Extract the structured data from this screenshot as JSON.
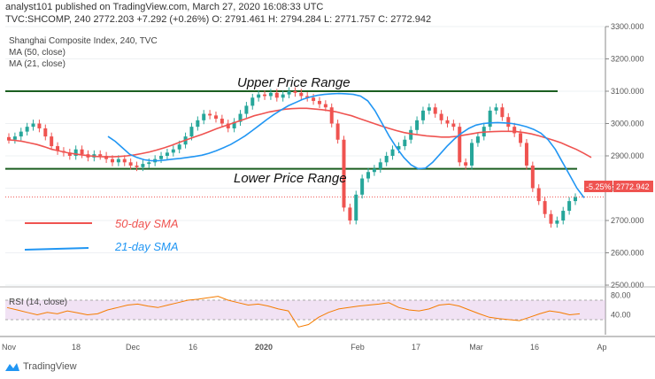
{
  "header": {
    "line1": "analyst101 published on TradingView.com, March 27, 2020 16:08:33 UTC",
    "line2": "TVC:SHCOMP, 240  2772.203  +7.292 (+0.26%)  O: 2791.461  H: 2794.284  L: 2771.757  C: 2772.942"
  },
  "panel": {
    "title": "Shanghai Composite Index, 240, TVC",
    "ma50_label": "MA (50, close)",
    "ma21_label": "MA (21, close)"
  },
  "annotations": {
    "upper": "Upper Price Range",
    "lower": "Lower Price Range",
    "legend_50": "50-day SMA",
    "legend_21": "21-day SMA"
  },
  "price_tags": {
    "change": "-5.25%",
    "last": "2772.942"
  },
  "rsi": {
    "label": "RSI (14, close)",
    "ticks": [
      "80.00",
      "40.00"
    ]
  },
  "footer": {
    "brand": "TradingView"
  },
  "colors": {
    "up": "#26a69a",
    "down": "#ef5350",
    "ma50": "#ef5350",
    "ma21": "#2196f3",
    "range": "#1b5e20",
    "rsi": "#f57c00",
    "rsi_band": "#e1bee7"
  },
  "chart_data": {
    "type": "candlestick",
    "y_axis": {
      "range": [
        2500,
        3300
      ],
      "ticks": [
        "3300.000",
        "3200.000",
        "3100.000",
        "3000.000",
        "2900.000",
        "2800.000",
        "2700.000",
        "2600.000",
        "2500.000"
      ]
    },
    "x_ticks": [
      "Nov",
      "18",
      "Dec",
      "16",
      "2020",
      "Feb",
      "17",
      "Mar",
      "16",
      "Ap"
    ],
    "upper_range": 3100,
    "lower_range": 2860,
    "current_price": 2772.942,
    "closes": [
      2950,
      2960,
      2975,
      2990,
      3000,
      2985,
      2960,
      2930,
      2915,
      2910,
      2900,
      2920,
      2905,
      2895,
      2905,
      2900,
      2890,
      2880,
      2890,
      2880,
      2870,
      2865,
      2875,
      2880,
      2890,
      2900,
      2910,
      2920,
      2935,
      2960,
      2990,
      3010,
      3030,
      3025,
      3015,
      3000,
      2985,
      3005,
      3030,
      3055,
      3080,
      3090,
      3085,
      3095,
      3080,
      3090,
      3100,
      3095,
      3085,
      3080,
      3070,
      3060,
      3050,
      3000,
      2950,
      2740,
      2700,
      2780,
      2830,
      2850,
      2860,
      2880,
      2900,
      2920,
      2930,
      2950,
      2980,
      3010,
      3040,
      3050,
      3030,
      3010,
      3000,
      2990,
      2880,
      2870,
      2940,
      2960,
      2990,
      3040,
      3050,
      3020,
      2990,
      2970,
      2940,
      2870,
      2800,
      2760,
      2720,
      2690,
      2700,
      2730,
      2760,
      2772
    ],
    "ma50": [
      2950,
      2948,
      2945,
      2940,
      2935,
      2928,
      2920,
      2915,
      2910,
      2906,
      2903,
      2900,
      2898,
      2897,
      2897,
      2898,
      2900,
      2903,
      2907,
      2912,
      2918,
      2925,
      2933,
      2942,
      2950,
      2958,
      2966,
      2975,
      2984,
      2992,
      3000,
      3008,
      3016,
      3024,
      3030,
      3036,
      3040,
      3044,
      3046,
      3047,
      3047,
      3045,
      3043,
      3040,
      3036,
      3030,
      3024,
      3016,
      3008,
      3000,
      2992,
      2985,
      2978,
      2972,
      2968,
      2965,
      2962,
      2960,
      2958,
      2958,
      2960,
      2964,
      2968,
      2972,
      2974,
      2975,
      2976,
      2976,
      2975,
      2972,
      2968,
      2962,
      2955,
      2948,
      2940,
      2930,
      2920,
      2908,
      2895
    ],
    "ma21": [
      2960,
      2945,
      2925,
      2905,
      2895,
      2888,
      2885,
      2885,
      2887,
      2890,
      2892,
      2895,
      2898,
      2902,
      2908,
      2916,
      2925,
      2935,
      2948,
      2962,
      2978,
      2995,
      3012,
      3028,
      3042,
      3055,
      3065,
      3075,
      3082,
      3087,
      3090,
      3092,
      3093,
      3092,
      3090,
      3085,
      3070,
      3040,
      3000,
      2960,
      2925,
      2895,
      2872,
      2860,
      2862,
      2880,
      2905,
      2930,
      2952,
      2970,
      2985,
      2995,
      3000,
      3002,
      3003,
      3002,
      3000,
      2996,
      2990,
      2982,
      2970,
      2950,
      2920,
      2880,
      2840,
      2800,
      2770
    ],
    "rsi": [
      55,
      50,
      45,
      40,
      45,
      42,
      48,
      44,
      40,
      42,
      50,
      55,
      60,
      62,
      58,
      55,
      60,
      65,
      70,
      72,
      75,
      78,
      70,
      65,
      60,
      62,
      58,
      52,
      48,
      15,
      20,
      35,
      45,
      52,
      55,
      58,
      60,
      62,
      65,
      55,
      50,
      48,
      52,
      60,
      62,
      58,
      50,
      42,
      35,
      32,
      30,
      28,
      35,
      42,
      48,
      45,
      40,
      42
    ]
  }
}
